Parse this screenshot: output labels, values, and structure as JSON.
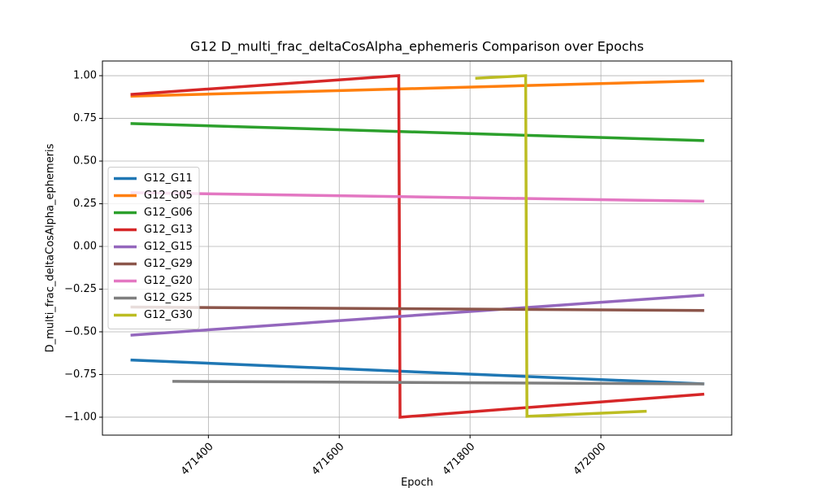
{
  "chart_data": {
    "type": "line",
    "title": "G12 D_multi_frac_deltaCosAlpha_ephemeris Comparison over Epochs",
    "x_label": "Epoch",
    "y_label": "D_multi_frac_deltaCosAlpha_ephemeris",
    "xlim": [
      471238,
      472200
    ],
    "ylim": [
      -1.105,
      1.086
    ],
    "xticks": [
      471400,
      471600,
      471800,
      472000
    ],
    "yticks": [
      {
        "value": -1,
        "label": "−1.00"
      },
      {
        "value": -0.75,
        "label": "−0.75"
      },
      {
        "value": -0.5,
        "label": "−0.50"
      },
      {
        "value": -0.25,
        "label": "−0.25"
      },
      {
        "value": 0,
        "label": "0.00"
      },
      {
        "value": 0.25,
        "label": "0.25"
      },
      {
        "value": 0.5,
        "label": "0.50"
      },
      {
        "value": 0.75,
        "label": "0.75"
      },
      {
        "value": 1,
        "label": "1.00"
      }
    ],
    "grid": true,
    "legend": "center left",
    "series": [
      {
        "name": "G12_G11",
        "color": "#1f77b4",
        "x": [
          471281,
          472158
        ],
        "values": [
          -0.665,
          -0.805
        ]
      },
      {
        "name": "G12_G05",
        "color": "#ff7f0e",
        "x": [
          471281,
          472158
        ],
        "values": [
          0.88,
          0.97
        ]
      },
      {
        "name": "G12_G06",
        "color": "#2ca02c",
        "x": [
          471281,
          472158
        ],
        "values": [
          0.72,
          0.62
        ]
      },
      {
        "name": "G12_G13",
        "color": "#d62728",
        "x": [
          471281,
          471691,
          471693,
          472158
        ],
        "values": [
          0.89,
          1.0,
          -1.0,
          -0.865
        ]
      },
      {
        "name": "G12_G15",
        "color": "#9467bd",
        "x": [
          471281,
          472158
        ],
        "values": [
          -0.52,
          -0.285
        ]
      },
      {
        "name": "G12_G29",
        "color": "#8c564b",
        "x": [
          471281,
          472158
        ],
        "values": [
          -0.355,
          -0.375
        ]
      },
      {
        "name": "G12_G20",
        "color": "#e377c2",
        "x": [
          471281,
          472158
        ],
        "values": [
          0.315,
          0.265
        ]
      },
      {
        "name": "G12_G25",
        "color": "#7f7f7f",
        "x": [
          471345,
          472158
        ],
        "values": [
          -0.79,
          -0.805
        ]
      },
      {
        "name": "G12_G30",
        "color": "#bcbd22",
        "x": [
          471808,
          471885,
          471887,
          472070
        ],
        "values": [
          0.985,
          1.0,
          -0.995,
          -0.965
        ]
      }
    ]
  }
}
